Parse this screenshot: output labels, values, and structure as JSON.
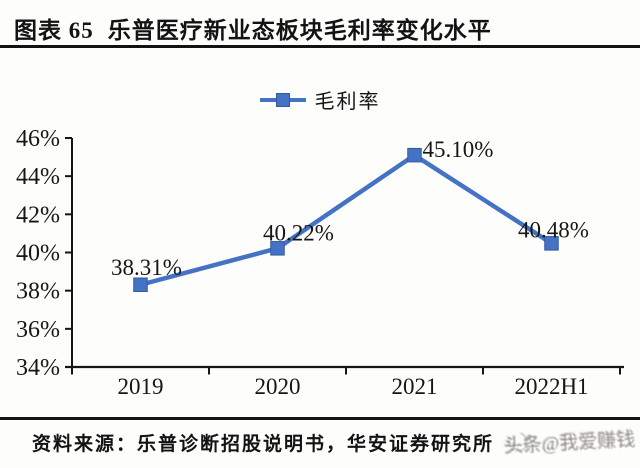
{
  "header": {
    "label": "图表 65",
    "title": "乐普医疗新业态板块毛利率变化水平"
  },
  "legend": {
    "series_label": "毛利率"
  },
  "chart_data": {
    "type": "line",
    "title": "图表 65 乐普医疗新业态板块毛利率变化水平",
    "categories": [
      "2019",
      "2020",
      "2021",
      "2022H1"
    ],
    "series": [
      {
        "name": "毛利率",
        "values": [
          38.31,
          40.22,
          45.1,
          40.48
        ]
      }
    ],
    "point_labels": [
      "38.31%",
      "40.22%",
      "45.10%",
      "40.48%"
    ],
    "ylim": [
      34,
      46
    ],
    "ytick_step": 2,
    "ytick_labels": [
      "34%",
      "36%",
      "38%",
      "40%",
      "42%",
      "44%",
      "46%"
    ],
    "grid": false,
    "legend_position": "top-center",
    "line_color": "#4472C4",
    "marker": "square",
    "axis_color": "#161616"
  },
  "footer": {
    "source": "资料来源：乐普诊断招股说明书，华安证券研究所"
  },
  "watermark": {
    "text": "头条@我爱赚钱"
  },
  "colors": {
    "accent": "#4472C4",
    "rule": "#121212"
  }
}
